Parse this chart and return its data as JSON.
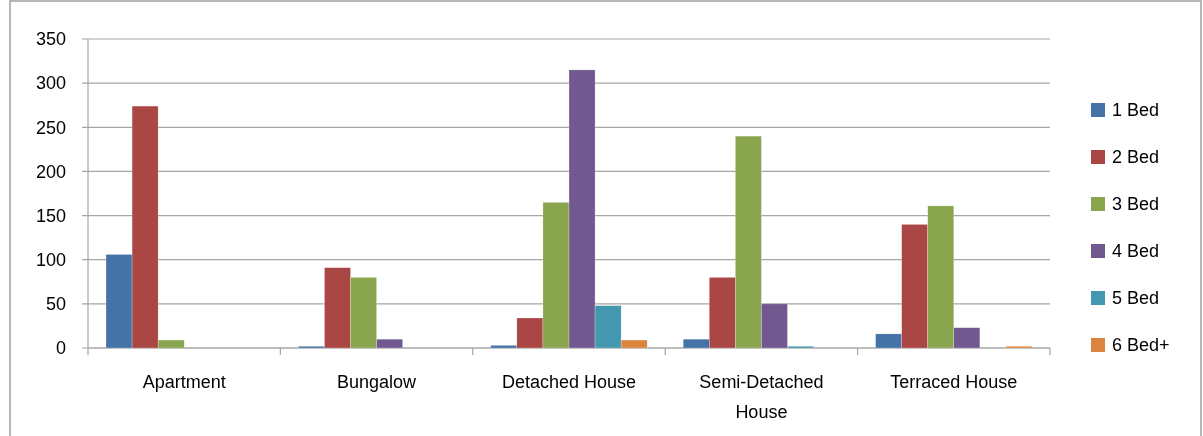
{
  "chart_data": {
    "type": "bar",
    "categories": [
      "Apartment",
      "Bungalow",
      "Detached House",
      "Semi-Detached House",
      "Terraced House"
    ],
    "series": [
      {
        "name": "1 Bed",
        "color": "#4572a7",
        "values": [
          106,
          2,
          3,
          10,
          16
        ]
      },
      {
        "name": "2 Bed",
        "color": "#aa4643",
        "values": [
          274,
          91,
          34,
          80,
          140
        ]
      },
      {
        "name": "3 Bed",
        "color": "#89a54e",
        "values": [
          9,
          80,
          165,
          240,
          161
        ]
      },
      {
        "name": "4 Bed",
        "color": "#71588f",
        "values": [
          0,
          10,
          315,
          50,
          23
        ]
      },
      {
        "name": "5 Bed",
        "color": "#4198af",
        "values": [
          0,
          0,
          48,
          2,
          0
        ]
      },
      {
        "name": "6 Bed+",
        "color": "#db843d",
        "values": [
          0,
          0,
          9,
          0,
          2
        ]
      }
    ],
    "ylim": [
      0,
      350
    ],
    "yticks": [
      0,
      50,
      100,
      150,
      200,
      250,
      300,
      350
    ],
    "grid": "y",
    "legend": "right"
  }
}
